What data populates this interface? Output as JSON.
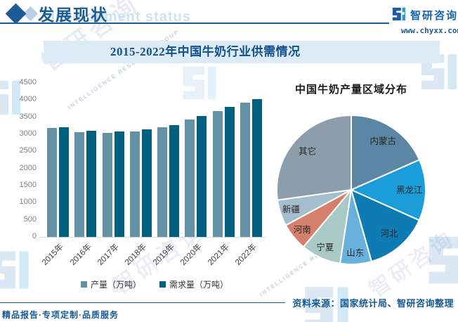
{
  "header": {
    "section_title": "发展现状",
    "watermark_title": "development status",
    "brand_name": "智研咨询",
    "brand_site": "www.chyxx.com"
  },
  "watermark": {
    "cn": "智研咨询",
    "en": "INTELLIGENCE RESEARCH GROUP"
  },
  "chart_data": [
    {
      "type": "bar",
      "title": "2015-2022年中国牛奶行业供需情况",
      "categories": [
        "2015年",
        "2016年",
        "2017年",
        "2018年",
        "2019年",
        "2020年",
        "2021年",
        "2022年"
      ],
      "series": [
        {
          "name": "产量（万吨）",
          "color": "#6392a7",
          "values": [
            3180,
            3060,
            3040,
            3075,
            3200,
            3440,
            3685,
            3930
          ]
        },
        {
          "name": "需求量（万吨）",
          "color": "#01607f",
          "values": [
            3215,
            3105,
            3090,
            3140,
            3275,
            3530,
            3805,
            4030
          ]
        }
      ],
      "xlabel": "",
      "ylabel": "",
      "ylim": [
        0,
        4500
      ],
      "yticks": [
        4500,
        4000,
        3500,
        3000,
        2500,
        2000,
        1500,
        1000,
        500,
        0
      ],
      "grid": false,
      "legend_position": "bottom",
      "values_note": "values estimated from gridlines, 万吨"
    },
    {
      "type": "pie",
      "title": "中国牛奶产量区域分布",
      "labels": [
        "内蒙古",
        "黑龙江",
        "河北",
        "山东",
        "宁夏",
        "河南",
        "新疆",
        "其它"
      ],
      "values": [
        18.4,
        13.3,
        13.9,
        6.8,
        8.7,
        6.0,
        5.7,
        27.2
      ],
      "value_unit": "% (estimated from slice angles)",
      "colors": [
        "#5b87a5",
        "#1a9dd9",
        "#0e7cb2",
        "#68b1dc",
        "#a9c8c6",
        "#d4806d",
        "#a4becd",
        "#8c9dac"
      ],
      "start_angle": "top",
      "direction": "clockwise",
      "label_position": "inside",
      "legend_position": "none"
    }
  ],
  "footer": {
    "tagline": "精品报告·专项定制·品质服务",
    "source_text": "资料来源：国家统计局、智研咨询整理"
  },
  "colors": {
    "accent_blue": "#1b5c95",
    "banner_bg": "#ddebf7",
    "banner_text": "#11508d",
    "axis_text": "#7f7f7f",
    "axis_line": "#d9d9d9",
    "logo_dark": "#1d5ba5",
    "logo_teal": "#2b9dc9"
  }
}
